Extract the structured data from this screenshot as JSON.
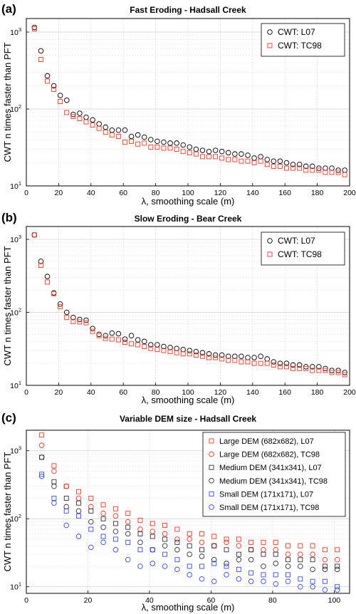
{
  "chart_data": [
    {
      "type": "scatter",
      "panel_label": "(a)",
      "title": "Fast Eroding - Hadsall Creek",
      "xlabel": "λ, smoothing scale (m)",
      "ylabel": "CWT n times faster than PFT",
      "xlim": [
        0,
        200
      ],
      "ylim": [
        10,
        1500
      ],
      "yscale": "log",
      "xticks": [
        "0",
        "20",
        "40",
        "60",
        "80",
        "100",
        "120",
        "140",
        "160",
        "180",
        "200"
      ],
      "yticks": [
        {
          "base": "10",
          "exp": "1",
          "value": 10
        },
        {
          "base": "10",
          "exp": "2",
          "value": 100
        },
        {
          "base": "10",
          "exp": "3",
          "value": 1000
        }
      ],
      "grid": true,
      "legend_position": "top-right",
      "x": [
        5,
        9,
        13,
        17,
        21,
        25,
        29,
        33,
        37,
        41,
        45,
        49,
        53,
        57,
        61,
        65,
        69,
        73,
        77,
        81,
        85,
        89,
        93,
        97,
        101,
        105,
        109,
        113,
        117,
        121,
        125,
        129,
        133,
        137,
        141,
        145,
        149,
        153,
        157,
        161,
        165,
        169,
        173,
        177,
        181,
        185,
        189,
        193,
        197
      ],
      "series": [
        {
          "name": "CWT: L07",
          "marker": "circle",
          "color": "#000000",
          "values": [
            1150,
            570,
            270,
            200,
            150,
            130,
            85,
            88,
            78,
            72,
            64,
            58,
            53,
            53,
            53,
            44,
            46,
            43,
            40,
            38,
            37,
            36,
            36,
            34,
            32,
            30,
            29,
            28,
            29,
            28,
            27,
            26,
            26,
            25,
            23,
            24,
            22,
            21,
            21,
            20,
            19,
            19,
            18,
            18,
            17,
            17,
            17,
            16,
            16
          ]
        },
        {
          "name": "CWT: TC98",
          "marker": "square",
          "color": "#e8392c",
          "values": [
            1100,
            440,
            230,
            180,
            125,
            90,
            80,
            75,
            68,
            62,
            56,
            50,
            46,
            44,
            37,
            38,
            35,
            36,
            32,
            32,
            31,
            31,
            30,
            28,
            27,
            26,
            24,
            24,
            24,
            23,
            22,
            22,
            21,
            21,
            20,
            21,
            19,
            18,
            18,
            17,
            17,
            17,
            16,
            16,
            16,
            15,
            15,
            15,
            14
          ]
        }
      ]
    },
    {
      "type": "scatter",
      "panel_label": "(b)",
      "title": "Slow Eroding - Bear Creek",
      "xlabel": "λ, smoothing scale (m)",
      "ylabel": "CWT n times faster than PFT",
      "xlim": [
        0,
        200
      ],
      "ylim": [
        10,
        1500
      ],
      "yscale": "log",
      "xticks": [
        "0",
        "20",
        "40",
        "60",
        "80",
        "100",
        "120",
        "140",
        "160",
        "180",
        "200"
      ],
      "yticks": [
        {
          "base": "10",
          "exp": "1",
          "value": 10
        },
        {
          "base": "10",
          "exp": "2",
          "value": 100
        },
        {
          "base": "10",
          "exp": "3",
          "value": 1000
        }
      ],
      "grid": true,
      "legend_position": "top-right",
      "x": [
        5,
        9,
        13,
        17,
        21,
        25,
        29,
        33,
        37,
        41,
        45,
        49,
        53,
        57,
        61,
        65,
        69,
        73,
        77,
        81,
        85,
        89,
        93,
        97,
        101,
        105,
        109,
        113,
        117,
        121,
        125,
        129,
        133,
        137,
        141,
        145,
        149,
        153,
        157,
        161,
        165,
        169,
        173,
        177,
        181,
        185,
        189,
        193,
        197
      ],
      "series": [
        {
          "name": "CWT: L07",
          "marker": "circle",
          "color": "#000000",
          "values": [
            1150,
            500,
            310,
            185,
            130,
            100,
            85,
            80,
            78,
            60,
            50,
            48,
            52,
            51,
            43,
            48,
            42,
            40,
            36,
            36,
            34,
            33,
            32,
            31,
            30,
            29,
            28,
            27,
            26,
            26,
            25,
            25,
            25,
            24,
            24,
            25,
            23,
            21,
            20,
            20,
            19,
            19,
            18,
            18,
            18,
            17,
            16,
            16,
            15
          ]
        },
        {
          "name": "CWT: TC98",
          "marker": "square",
          "color": "#e8392c",
          "values": [
            1150,
            440,
            260,
            180,
            120,
            85,
            75,
            74,
            72,
            55,
            48,
            44,
            43,
            42,
            39,
            37,
            36,
            34,
            32,
            31,
            30,
            29,
            28,
            27,
            27,
            26,
            25,
            24,
            24,
            23,
            22,
            22,
            21,
            21,
            20,
            20,
            20,
            19,
            18,
            18,
            17,
            17,
            17,
            16,
            16,
            16,
            15,
            15,
            14
          ]
        }
      ]
    },
    {
      "type": "scatter",
      "panel_label": "(c)",
      "title": "Variable DEM size - Hadsall Creek",
      "xlabel": "λ, smoothing scale (m)",
      "ylabel": "CWT n times faster than PFT",
      "xlim": [
        0,
        105
      ],
      "ylim": [
        8,
        2000
      ],
      "yscale": "log",
      "xticks": [
        "0",
        "20",
        "40",
        "60",
        "80",
        "100"
      ],
      "yticks": [
        {
          "base": "10",
          "exp": "1",
          "value": 10
        },
        {
          "base": "10",
          "exp": "2",
          "value": 100
        },
        {
          "base": "10",
          "exp": "3",
          "value": 1000
        }
      ],
      "grid": true,
      "legend_position": "top-right",
      "x": [
        5,
        9,
        13,
        17,
        21,
        25,
        29,
        33,
        37,
        41,
        45,
        49,
        53,
        57,
        61,
        65,
        69,
        73,
        77,
        81,
        85,
        89,
        93,
        97,
        101
      ],
      "series": [
        {
          "name": "Large DEM (682x682), L07",
          "marker": "square",
          "color": "#e8392c",
          "values": [
            1700,
            600,
            300,
            250,
            200,
            160,
            140,
            120,
            95,
            85,
            80,
            70,
            60,
            60,
            55,
            50,
            50,
            45,
            45,
            45,
            40,
            40,
            40,
            35,
            35
          ]
        },
        {
          "name": "Large DEM (682x682), TC98",
          "marker": "circle",
          "color": "#e8392c",
          "values": [
            1200,
            500,
            300,
            200,
            150,
            120,
            110,
            90,
            70,
            65,
            60,
            50,
            50,
            45,
            40,
            45,
            40,
            35,
            35,
            35,
            30,
            30,
            30,
            25,
            25
          ]
        },
        {
          "name": "Medium DEM (341x341), L07",
          "marker": "square",
          "color": "#333333",
          "values": [
            800,
            350,
            200,
            170,
            130,
            100,
            85,
            75,
            60,
            55,
            50,
            45,
            40,
            35,
            40,
            35,
            30,
            35,
            30,
            30,
            25,
            25,
            25,
            20,
            20
          ]
        },
        {
          "name": "Medium DEM (341x341), TC98",
          "marker": "circle",
          "color": "#333333",
          "values": [
            800,
            300,
            150,
            130,
            90,
            75,
            65,
            60,
            45,
            35,
            40,
            35,
            30,
            28,
            25,
            22,
            25,
            25,
            20,
            22,
            20,
            20,
            18,
            18,
            18
          ]
        },
        {
          "name": "Small DEM (171x171), L07",
          "marker": "square",
          "color": "#3b4bd8",
          "values": [
            450,
            200,
            130,
            110,
            70,
            55,
            50,
            45,
            35,
            35,
            30,
            25,
            20,
            20,
            22,
            20,
            18,
            16,
            15,
            15,
            15,
            13,
            12,
            12,
            10
          ]
        },
        {
          "name": "Small DEM (171x171), TC98",
          "marker": "circle",
          "color": "#3b4bd8",
          "values": [
            420,
            170,
            80,
            55,
            38,
            45,
            35,
            25,
            20,
            22,
            20,
            18,
            15,
            13,
            12,
            15,
            13,
            12,
            12,
            11,
            12,
            10,
            10,
            9,
            9
          ]
        }
      ]
    }
  ]
}
